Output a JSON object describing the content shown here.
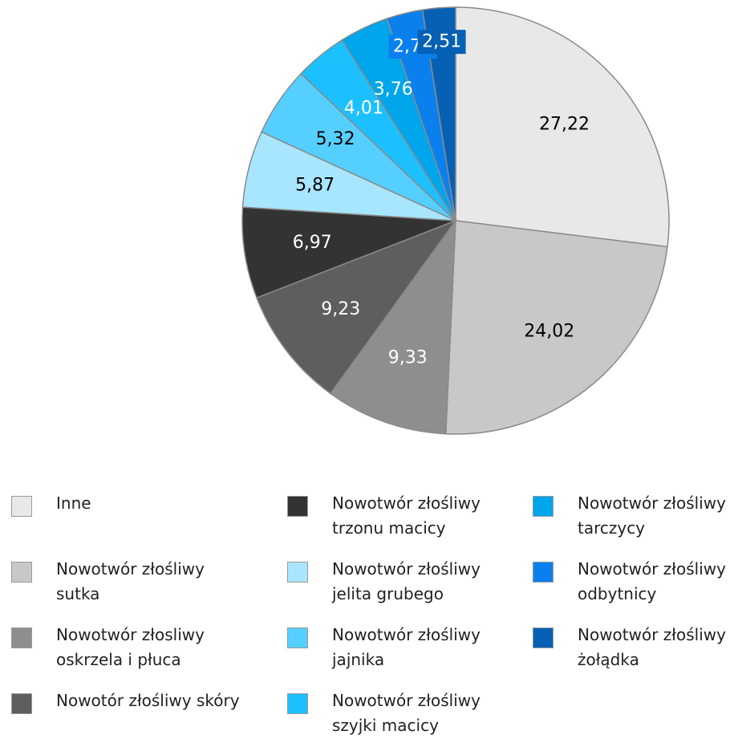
{
  "chart_data": {
    "type": "pie",
    "start_angle_deg": 0,
    "direction": "clockwise",
    "slices": [
      {
        "name": "Inne",
        "value": 27.22,
        "label": "27,22",
        "color": "#e8e8e8",
        "label_color": "#000000"
      },
      {
        "name": "Nowotwór złośliwy sutka",
        "value": 24.02,
        "label": "24,02",
        "color": "#c8c8c8",
        "label_color": "#000000"
      },
      {
        "name": "Nowotwór złosliwy oskrzela i płuca",
        "value": 9.33,
        "label": "9,33",
        "color": "#8e8e8e",
        "label_color": "#ffffff"
      },
      {
        "name": "Nowotór złośliwy skóry",
        "value": 9.23,
        "label": "9,23",
        "color": "#5e5e5e",
        "label_color": "#ffffff"
      },
      {
        "name": "Nowotwór złośliwy trzonu macicy",
        "value": 6.97,
        "label": "6,97",
        "color": "#333333",
        "label_color": "#ffffff"
      },
      {
        "name": "Nowotwór złośliwy jelita grubego",
        "value": 5.87,
        "label": "5,87",
        "color": "#a8e6ff",
        "label_color": "#000000"
      },
      {
        "name": "Nowotwór złośliwy jajnika",
        "value": 5.32,
        "label": "5,32",
        "color": "#55cfff",
        "label_color": "#000000"
      },
      {
        "name": "Nowotwór złośliwy szyjki macicy",
        "value": 4.01,
        "label": "4,01",
        "color": "#1dc0ff",
        "label_color": "#ffffff"
      },
      {
        "name": "Nowotwór złośliwy tarczycy",
        "value": 3.76,
        "label": "3,76",
        "color": "#00a6ec",
        "label_color": "#ffffff"
      },
      {
        "name": "Nowotwór złośliwy odbytnicy",
        "value": 2.76,
        "label": "2,76",
        "color": "#0a80ee",
        "label_color": "#ffffff"
      },
      {
        "name": "Nowotwór złośliwy żołądka",
        "value": 2.51,
        "label": "2,51",
        "color": "#0660b4",
        "label_color": "#ffffff"
      }
    ],
    "legend": {
      "placement": "bottom",
      "columns": [
        [
          {
            "lines": [
              "Inne"
            ],
            "color": "#e8e8e8"
          },
          {
            "lines": [
              "Nowotwór złośliwy",
              "sutka"
            ],
            "color": "#c8c8c8"
          },
          {
            "lines": [
              "Nowotwór złosliwy",
              "oskrzela i płuca"
            ],
            "color": "#8e8e8e"
          },
          {
            "lines": [
              "Nowotór złośliwy skóry"
            ],
            "color": "#5e5e5e"
          }
        ],
        [
          {
            "lines": [
              "Nowotwór złośliwy",
              "trzonu macicy"
            ],
            "color": "#333333"
          },
          {
            "lines": [
              "Nowotwór złośliwy",
              "jelita grubego"
            ],
            "color": "#a8e6ff"
          },
          {
            "lines": [
              "Nowotwór złośliwy",
              "jajnika"
            ],
            "color": "#55cfff"
          },
          {
            "lines": [
              "Nowotwór złośliwy",
              "szyjki macicy"
            ],
            "color": "#1dc0ff"
          }
        ],
        [
          {
            "lines": [
              "Nowotwór złośliwy",
              "tarczycy"
            ],
            "color": "#00a6ec"
          },
          {
            "lines": [
              "Nowotwór złośliwy",
              "odbytnicy"
            ],
            "color": "#0a80ee"
          },
          {
            "lines": [
              "Nowotwór złośliwy",
              "żołądka"
            ],
            "color": "#0660b4"
          }
        ]
      ]
    }
  }
}
